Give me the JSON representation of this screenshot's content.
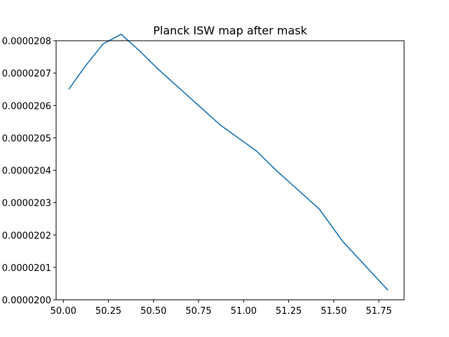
{
  "chart_data": {
    "type": "line",
    "title": "Planck ISW map after mask",
    "xlabel": "",
    "ylabel": "",
    "xlim": [
      49.96,
      51.89
    ],
    "ylim": [
      2e-05,
      2.08e-05
    ],
    "grid": false,
    "legend": "none",
    "x_ticks": [
      {
        "value": 50.0,
        "label": "50.00"
      },
      {
        "value": 50.25,
        "label": "50.25"
      },
      {
        "value": 50.5,
        "label": "50.50"
      },
      {
        "value": 50.75,
        "label": "50.75"
      },
      {
        "value": 51.0,
        "label": "51.00"
      },
      {
        "value": 51.25,
        "label": "51.25"
      },
      {
        "value": 51.5,
        "label": "51.50"
      },
      {
        "value": 51.75,
        "label": "51.75"
      }
    ],
    "y_ticks": [
      {
        "value": 2e-05,
        "label": "0.0000200"
      },
      {
        "value": 2.01e-05,
        "label": "0.0000201"
      },
      {
        "value": 2.02e-05,
        "label": "0.0000202"
      },
      {
        "value": 2.03e-05,
        "label": "0.0000203"
      },
      {
        "value": 2.04e-05,
        "label": "0.0000204"
      },
      {
        "value": 2.05e-05,
        "label": "0.0000205"
      },
      {
        "value": 2.06e-05,
        "label": "0.0000206"
      },
      {
        "value": 2.07e-05,
        "label": "0.0000207"
      },
      {
        "value": 2.08e-05,
        "label": "0.0000208"
      }
    ],
    "series": [
      {
        "color": "#1f77b4",
        "x": [
          50.03,
          50.12,
          50.22,
          50.32,
          50.42,
          50.53,
          50.65,
          50.77,
          50.87,
          50.97,
          51.07,
          51.18,
          51.3,
          51.42,
          51.55,
          51.8
        ],
        "y": [
          2.065e-05,
          2.072e-05,
          2.079e-05,
          2.082e-05,
          2.077e-05,
          2.071e-05,
          2.065e-05,
          2.059e-05,
          2.054e-05,
          2.05e-05,
          2.046e-05,
          2.04e-05,
          2.034e-05,
          2.028e-05,
          2.018e-05,
          2.003e-05
        ]
      }
    ]
  }
}
